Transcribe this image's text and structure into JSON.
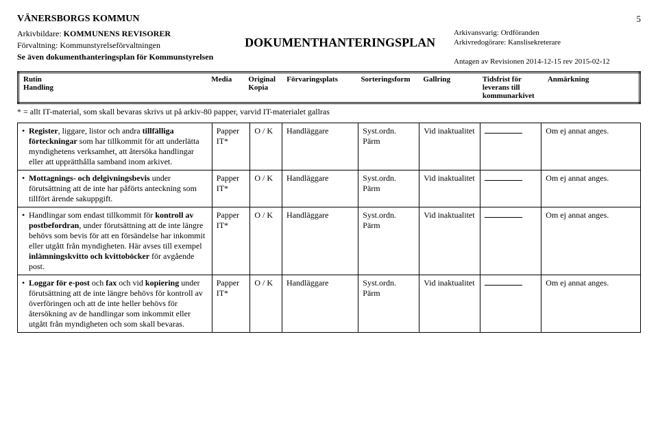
{
  "page_number": "5",
  "org_title": "VÄNERSBORGS KOMMUN",
  "header_left": {
    "l1_label": "Arkivbildare: ",
    "l1_val": "KOMMUNENS REVISORER",
    "l2": "Förvaltning: Kommunstyrelseförvaltningen",
    "l3_prefix": "Se även dokumenthanteringsplan för Kommunstyrelsen"
  },
  "header_center": "DOKUMENTHANTERINGSPLAN",
  "header_right": {
    "r1": "Arkivansvarig: Ordföranden",
    "r2": "Arkivredogörare: Kanslisekreterare",
    "r3": "Antagen av Revisionen 2014-12-15 rev 2015-02-12"
  },
  "col_headers": {
    "rutin": "Rutin",
    "handling": "Handling",
    "media": "Media",
    "original": "Original",
    "kopia": "Kopia",
    "forvaringsplats": "Förvaringsplats",
    "sorteringsform": "Sorteringsform",
    "gallring": "Gallring",
    "tidsfrist": "Tidsfrist för",
    "leverans": "leverans till",
    "kommunarkivet": "kommunarkivet",
    "anmarkning": "Anmärkning"
  },
  "note": "* = allt IT-material, som skall bevaras skrivs ut på arkiv-80 papper, varvid IT-materialet gallras",
  "rows": [
    {
      "desc_parts": [
        {
          "t": "Register",
          "b": true
        },
        {
          "t": ", liggare, listor och andra "
        },
        {
          "t": "tillfälliga förteckningar",
          "b": true
        },
        {
          "t": " som har tillkommit för att underlätta myndighetens verksamhet, att återsöka handlingar eller att upprätthålla samband inom arkivet."
        }
      ],
      "media": "Papper IT*",
      "ok": "O / K",
      "forv": "Handläggare",
      "sort": "Syst.ordn. Pärm",
      "gall": "Vid inaktualitet",
      "anm": "Om ej annat anges."
    },
    {
      "desc_parts": [
        {
          "t": "Mottagnings- och delgivningsbevis",
          "b": true
        },
        {
          "t": " under förutsättning att de inte har påförts anteckning som tillfört ärende sakuppgift."
        }
      ],
      "media": "Papper IT*",
      "ok": "O / K",
      "forv": "Handläggare",
      "sort": "Syst.ordn. Pärm",
      "gall": "Vid inaktualitet",
      "anm": "Om ej annat anges."
    },
    {
      "desc_parts": [
        {
          "t": "Handlingar som endast tillkommit för "
        },
        {
          "t": "kontroll av postbefordran",
          "b": true
        },
        {
          "t": ", under förutsättning att de inte längre behövs som bevis för att en försändelse har inkommit eller utgått från myndigheten. Här avses till exempel "
        },
        {
          "t": "inlämningskvitto och kvittoböcker",
          "b": true
        },
        {
          "t": " för avgående post."
        }
      ],
      "media": "Papper IT*",
      "ok": "O / K",
      "forv": "Handläggare",
      "sort": "Syst.ordn. Pärm",
      "gall": "Vid inaktualitet",
      "anm": "Om ej annat anges."
    },
    {
      "desc_parts": [
        {
          "t": "Loggar för e-post",
          "b": true
        },
        {
          "t": " och "
        },
        {
          "t": "fax",
          "b": true
        },
        {
          "t": " och vid "
        },
        {
          "t": "kopiering",
          "b": true
        },
        {
          "t": " under förutsättning att de inte längre behövs för kontroll av överföringen och att de inte heller behövs för återsökning av de handlingar som inkommit eller utgått från myndigheten och som skall bevaras."
        }
      ],
      "media": "Papper IT*",
      "ok": "O / K",
      "forv": "Handläggare",
      "sort": "Syst.ordn. Pärm",
      "gall": "Vid inaktualitet",
      "anm": "Om ej annat anges."
    }
  ]
}
